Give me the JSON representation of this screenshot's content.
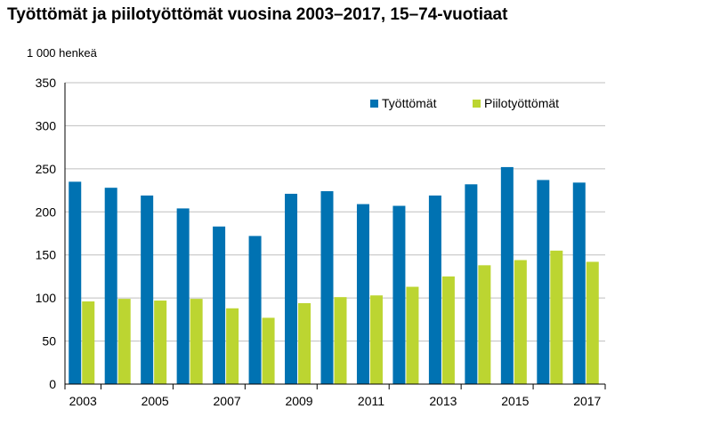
{
  "chart_data": {
    "type": "bar",
    "title": "Työttömät ja piilotyöttömät vuosina 2003–2017, 15–74-vuotiaat",
    "ylabel": "1 000 henkeä",
    "xlabel": "",
    "ylim": [
      0,
      350
    ],
    "yticks": [
      "0",
      "50",
      "100",
      "150",
      "200",
      "250",
      "300",
      "350"
    ],
    "categories": [
      "2003",
      "2004",
      "2005",
      "2006",
      "2007",
      "2008",
      "2009",
      "2010",
      "2011",
      "2012",
      "2013",
      "2014",
      "2015",
      "2016",
      "2017"
    ],
    "xtick_labels": [
      "2003",
      "",
      "2005",
      "",
      "2007",
      "",
      "2009",
      "",
      "2011",
      "",
      "2013",
      "",
      "2015",
      "",
      "2017"
    ],
    "series": [
      {
        "name": "Työttömät",
        "color": "#0072b2",
        "values": [
          235,
          228,
          219,
          204,
          183,
          172,
          221,
          224,
          209,
          207,
          219,
          232,
          252,
          237,
          234
        ]
      },
      {
        "name": "Piilotyöttömät",
        "color": "#bcd531",
        "values": [
          96,
          99,
          97,
          99,
          88,
          77,
          94,
          101,
          103,
          113,
          125,
          138,
          144,
          155,
          142
        ]
      }
    ],
    "grid": true,
    "legend_position": "top-right"
  }
}
